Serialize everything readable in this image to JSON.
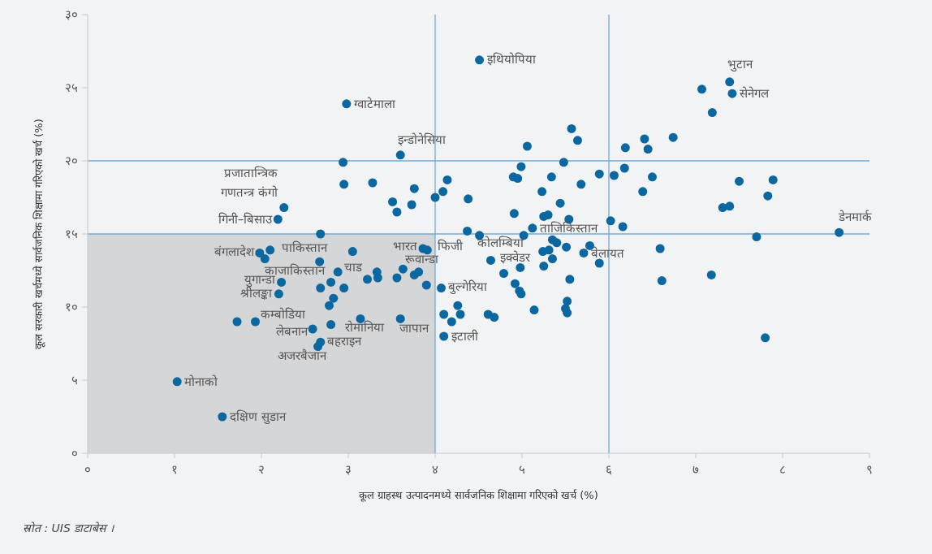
{
  "chart_data": {
    "type": "scatter",
    "xlabel": "कूल ग्राहस्थ उत्पादनमध्ये सार्वजनिक शिक्षामा गरिएको खर्च (%)",
    "ylabel": "कूल सरकारी खर्चमध्ये सार्वजनिक शिक्षामा गरिएको खर्च (%)",
    "xlim": [
      0,
      9
    ],
    "ylim": [
      0,
      30
    ],
    "xticks": [
      {
        "value": 0,
        "label": "०"
      },
      {
        "value": 1,
        "label": "१"
      },
      {
        "value": 2,
        "label": "२"
      },
      {
        "value": 3,
        "label": "३"
      },
      {
        "value": 4,
        "label": "४"
      },
      {
        "value": 5,
        "label": "५"
      },
      {
        "value": 6,
        "label": "६"
      },
      {
        "value": 7,
        "label": "७"
      },
      {
        "value": 8,
        "label": "८"
      },
      {
        "value": 9,
        "label": "९"
      }
    ],
    "yticks": [
      {
        "value": 0,
        "label": "०"
      },
      {
        "value": 5,
        "label": "५"
      },
      {
        "value": 10,
        "label": "१०"
      },
      {
        "value": 15,
        "label": "१५"
      },
      {
        "value": 20,
        "label": "२०"
      },
      {
        "value": 25,
        "label": "२५"
      },
      {
        "value": 30,
        "label": "३०"
      }
    ],
    "marker": "circle",
    "series": [
      {
        "type": "area",
        "marker": "none",
        "color": "#d5d6d8",
        "x": [
          0,
          4
        ],
        "values": [
          15,
          15
        ]
      },
      {
        "color": "#0b67a0",
        "x": [
          2.98,
          3.6,
          2.94,
          2.95,
          3.28,
          3.76,
          4.14,
          4.09,
          4.0,
          3.51,
          3.56,
          3.73,
          2.26,
          2.19,
          2.68,
          1.98,
          2.1,
          2.04,
          2.67,
          3.05,
          2.88,
          2.8,
          2.68,
          2.95,
          3.22,
          3.33,
          3.34,
          3.56,
          3.63,
          3.76,
          3.81,
          3.86,
          3.91,
          3.9,
          4.07,
          2.23,
          2.2,
          2.83,
          2.78,
          1.72,
          1.93,
          2.59,
          2.8,
          3.14,
          3.6,
          4.1,
          4.19,
          4.1,
          2.68,
          2.65,
          1.03,
          1.55,
          4.51,
          5.57,
          5.64,
          5.06,
          6.19,
          6.41,
          6.45,
          5.48,
          4.99,
          6.18,
          5.89,
          6.06,
          4.9,
          4.95,
          5.34,
          5.68,
          6.39,
          4.38,
          5.23,
          5.44,
          4.91,
          5.25,
          5.3,
          5.54,
          6.02,
          6.16,
          5.12,
          4.37,
          4.51,
          5.02,
          5.35,
          5.4,
          5.51,
          5.24,
          5.31,
          5.35,
          5.78,
          5.71,
          5.89,
          4.64,
          4.98,
          5.25,
          4.79,
          5.55,
          4.92,
          4.97,
          4.99,
          4.26,
          4.29,
          4.61,
          4.68,
          5.14,
          5.52,
          5.5,
          5.52,
          7.39,
          7.42,
          7.07,
          7.19,
          6.74,
          6.5,
          7.5,
          7.89,
          7.83,
          7.31,
          7.39,
          8.65,
          7.7,
          6.59,
          6.61,
          7.18,
          7.8
        ],
        "values": [
          23.9,
          20.4,
          19.9,
          18.4,
          18.5,
          18.1,
          18.7,
          17.9,
          17.5,
          17.2,
          16.5,
          17.0,
          16.8,
          16.0,
          15.0,
          13.7,
          13.9,
          13.3,
          13.1,
          13.8,
          12.4,
          11.7,
          11.3,
          11.3,
          11.9,
          12.4,
          12.0,
          12.0,
          12.6,
          12.2,
          12.4,
          14.0,
          13.9,
          11.5,
          11.3,
          11.7,
          10.9,
          10.6,
          10.1,
          9.0,
          9.0,
          8.5,
          8.8,
          9.2,
          9.2,
          9.5,
          9.0,
          8.0,
          7.6,
          7.3,
          4.9,
          2.5,
          26.9,
          22.2,
          21.4,
          21.0,
          20.9,
          21.5,
          20.8,
          19.9,
          19.6,
          19.5,
          19.1,
          19.0,
          18.9,
          18.8,
          18.9,
          18.4,
          17.9,
          17.4,
          17.9,
          17.1,
          16.4,
          16.2,
          16.3,
          16.0,
          15.9,
          15.5,
          15.4,
          15.2,
          14.9,
          14.9,
          14.6,
          14.4,
          14.1,
          13.8,
          13.9,
          13.3,
          14.2,
          13.7,
          13.0,
          13.2,
          12.7,
          12.8,
          12.3,
          11.9,
          11.6,
          11.1,
          10.9,
          10.1,
          9.5,
          9.5,
          9.3,
          9.8,
          10.4,
          9.9,
          9.6,
          25.4,
          24.6,
          24.9,
          23.3,
          21.6,
          18.9,
          18.6,
          18.7,
          17.6,
          16.8,
          16.9,
          15.1,
          14.8,
          14.0,
          11.8,
          12.2,
          7.9
        ]
      }
    ],
    "ref_lines": [
      {
        "axis": "x",
        "value": 4,
        "color": "#74a9d8"
      },
      {
        "axis": "x",
        "value": 6,
        "color": "#74a9d8"
      },
      {
        "axis": "y",
        "value": 20,
        "color": "#74a9d8"
      },
      {
        "axis": "y",
        "value": 15,
        "color": "#74a9d8"
      }
    ],
    "annotations": [
      {
        "text": "ग्वाटेमाला",
        "x": 2.98,
        "y": 23.9
      },
      {
        "text": "इन्डोनेसिया",
        "x": 3.6,
        "y": 20.4
      },
      {
        "text": "इथियोपिया",
        "x": 4.51,
        "y": 26.9
      },
      {
        "text": "भुटान",
        "x": 7.39,
        "y": 25.4
      },
      {
        "text": "सेनेगल",
        "x": 7.42,
        "y": 24.6
      },
      {
        "text": "प्रजातान्त्रिक\nगणतन्त्र कंगो",
        "x": 2.26,
        "y": 16.8
      },
      {
        "text": "गिनी–बिसाउ",
        "x": 2.19,
        "y": 16.0
      },
      {
        "text": "बंगलादेश",
        "x": 1.98,
        "y": 13.7
      },
      {
        "text": "पाकिस्तान",
        "x": 2.1,
        "y": 13.9
      },
      {
        "text": "काजाकिस्तान",
        "x": 2.67,
        "y": 13.1
      },
      {
        "text": "चाड",
        "x": 2.88,
        "y": 12.4
      },
      {
        "text": "युगान्डा",
        "x": 2.23,
        "y": 11.7
      },
      {
        "text": "श्रीलङ्का",
        "x": 2.2,
        "y": 10.9
      },
      {
        "text": "कम्बोडिया",
        "x": 1.93,
        "y": 9.0
      },
      {
        "text": "लेबनान",
        "x": 2.59,
        "y": 8.5
      },
      {
        "text": "बहराइन",
        "x": 2.68,
        "y": 7.6
      },
      {
        "text": "अजरबैजान",
        "x": 2.65,
        "y": 7.3
      },
      {
        "text": "रोमानिया",
        "x": 3.14,
        "y": 9.2
      },
      {
        "text": "जापान",
        "x": 3.6,
        "y": 9.2
      },
      {
        "text": "मोनाको",
        "x": 1.03,
        "y": 4.9
      },
      {
        "text": "दक्षिण सुडान",
        "x": 1.55,
        "y": 2.5
      },
      {
        "text": "भारत",
        "x": 3.86,
        "y": 14.0
      },
      {
        "text": "फिजी",
        "x": 3.91,
        "y": 13.9
      },
      {
        "text": "रूवान्डा",
        "x": 3.63,
        "y": 12.6
      },
      {
        "text": "बुल्गेरिया",
        "x": 4.07,
        "y": 11.3
      },
      {
        "text": "इटाली",
        "x": 4.1,
        "y": 8.0
      },
      {
        "text": "कोलम्बिया",
        "x": 4.51,
        "y": 14.9
      },
      {
        "text": "इक्वेडर",
        "x": 4.64,
        "y": 13.2
      },
      {
        "text": "ताजिकिस्तान",
        "x": 5.12,
        "y": 15.4
      },
      {
        "text": "बेलायत",
        "x": 5.89,
        "y": 13.0
      },
      {
        "text": "डेनमार्क",
        "x": 8.65,
        "y": 15.1
      },
      "स्रोत : UIS डाटाबेस ।"
    ]
  }
}
